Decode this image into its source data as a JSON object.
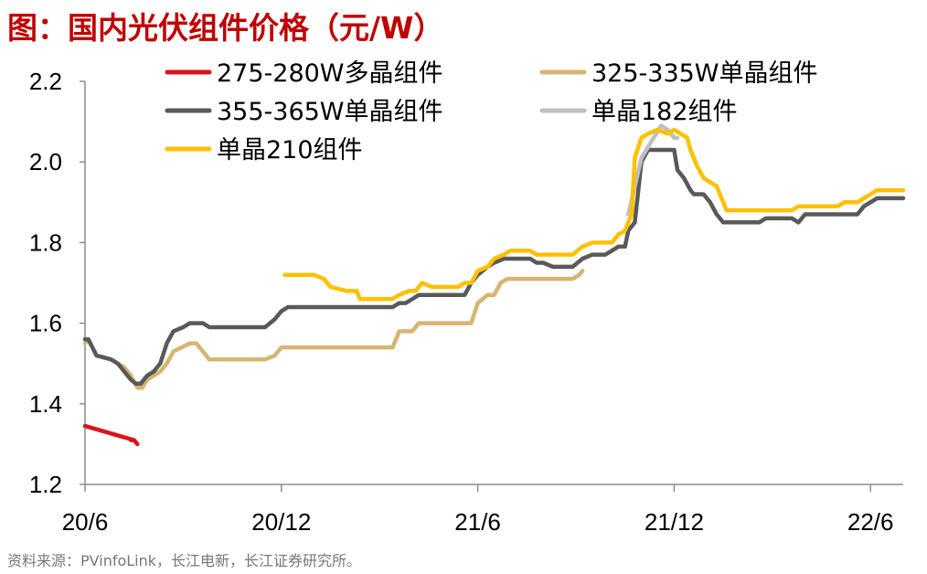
{
  "title": "图：国内光伏组件价格（元/W）",
  "source": "资料来源：PVinfoLink，长江电新，长江证券研究所。",
  "chart_data": {
    "type": "line",
    "title": "图：国内光伏组件价格（元/W）",
    "xlabel": "",
    "ylabel": "",
    "ylim": [
      1.2,
      2.2
    ],
    "yticks": [
      1.2,
      1.4,
      1.6,
      1.8,
      2.0,
      2.2
    ],
    "ytick_labels": [
      "1.2",
      "1.4",
      "1.6",
      "1.8",
      "2.0",
      "2.2"
    ],
    "x_unit": "months since 20/6",
    "xlim": [
      0,
      25
    ],
    "xticks": [
      0,
      6,
      12,
      18,
      24
    ],
    "xtick_labels": [
      "20/6",
      "20/12",
      "21/6",
      "21/12",
      "22/6"
    ],
    "grid": false,
    "legend_position": "top",
    "series": [
      {
        "name": "275-280W多晶组件",
        "color": "#d9141b",
        "points": [
          [
            0,
            1.345
          ],
          [
            1.5,
            1.31
          ],
          [
            1.5,
            1.31
          ],
          [
            1.5,
            1.31
          ],
          [
            1.6,
            1.3
          ],
          [
            1.5,
            1.31
          ],
          [
            1.5,
            1.31
          ],
          [
            1.4,
            1.31
          ],
          [
            1.5,
            1.31
          ],
          [
            1.5,
            1.31
          ],
          [
            1.5,
            1.31
          ],
          [
            1.5,
            1.31
          ],
          [
            1.6,
            1.3
          ],
          [
            1.5,
            1.31
          ],
          [
            1.5,
            1.31
          ],
          [
            1.5,
            1.31
          ],
          [
            1.5,
            1.31
          ],
          [
            1.5,
            1.31
          ],
          [
            1.5,
            1.31
          ],
          [
            1.5,
            1.31
          ],
          [
            1.5,
            1.31
          ],
          [
            1.5,
            1.31
          ],
          [
            1.5,
            1.31
          ],
          [
            1.5,
            1.31
          ],
          [
            1.5,
            1.31
          ],
          [
            1.5,
            1.31
          ],
          [
            1.5,
            1.31
          ],
          [
            1.5,
            1.31
          ],
          [
            1.5,
            1.31
          ],
          [
            1.5,
            1.31
          ],
          [
            1.5,
            1.31
          ],
          [
            1.5,
            1.31
          ],
          [
            1.5,
            1.31
          ],
          [
            1.5,
            1.31
          ],
          [
            1.5,
            1.31
          ],
          [
            1.5,
            1.31
          ],
          [
            1.5,
            1.31
          ],
          [
            1.5,
            1.31
          ],
          [
            1.5,
            1.31
          ],
          [
            1.5,
            1.31
          ],
          [
            1.5,
            1.31
          ],
          [
            1.5,
            1.31
          ],
          [
            1.5,
            1.31
          ],
          [
            1.5,
            1.31
          ],
          [
            1.5,
            1.31
          ],
          [
            1.5,
            1.31
          ]
        ]
      },
      {
        "name": "325-335W单晶组件",
        "color": "#d8b472",
        "points": [
          [
            0,
            1.55
          ],
          [
            0.1,
            1.56
          ],
          [
            0.35,
            1.52
          ],
          [
            0.8,
            1.51
          ],
          [
            1.0,
            1.5
          ],
          [
            1.2,
            1.49
          ],
          [
            1.4,
            1.47
          ],
          [
            1.6,
            1.44
          ],
          [
            1.75,
            1.44
          ],
          [
            1.9,
            1.46
          ],
          [
            2.1,
            1.47
          ],
          [
            2.3,
            1.48
          ],
          [
            2.5,
            1.5
          ],
          [
            2.7,
            1.53
          ],
          [
            3.2,
            1.55
          ],
          [
            3.4,
            1.55
          ],
          [
            3.6,
            1.53
          ],
          [
            3.8,
            1.51
          ],
          [
            4.0,
            1.51
          ],
          [
            4.6,
            1.51
          ],
          [
            5.0,
            1.51
          ],
          [
            5.5,
            1.51
          ],
          [
            5.8,
            1.52
          ],
          [
            6.0,
            1.54
          ],
          [
            6.3,
            1.54
          ],
          [
            8.0,
            1.54
          ],
          [
            9.0,
            1.54
          ],
          [
            9.2,
            1.54
          ],
          [
            9.4,
            1.54
          ],
          [
            9.6,
            1.58
          ],
          [
            9.8,
            1.58
          ],
          [
            10.0,
            1.58
          ],
          [
            10.2,
            1.6
          ],
          [
            10.6,
            1.6
          ],
          [
            11.0,
            1.6
          ],
          [
            11.5,
            1.6
          ],
          [
            11.6,
            1.6
          ],
          [
            11.8,
            1.6
          ],
          [
            12.0,
            1.65
          ],
          [
            12.3,
            1.67
          ],
          [
            12.5,
            1.67
          ],
          [
            12.7,
            1.7
          ],
          [
            12.9,
            1.71
          ],
          [
            13.2,
            1.71
          ],
          [
            14.0,
            1.71
          ],
          [
            14.7,
            1.71
          ],
          [
            14.9,
            1.71
          ],
          [
            15.1,
            1.72
          ],
          [
            15.2,
            1.73
          ]
        ]
      },
      {
        "name": "355-365W单晶组件",
        "color": "#595959",
        "points": [
          [
            0,
            1.56
          ],
          [
            0.1,
            1.56
          ],
          [
            0.35,
            1.52
          ],
          [
            0.8,
            1.51
          ],
          [
            1.0,
            1.5
          ],
          [
            1.2,
            1.48
          ],
          [
            1.4,
            1.46
          ],
          [
            1.55,
            1.45
          ],
          [
            1.7,
            1.45
          ],
          [
            1.9,
            1.47
          ],
          [
            2.1,
            1.48
          ],
          [
            2.3,
            1.5
          ],
          [
            2.5,
            1.55
          ],
          [
            2.7,
            1.58
          ],
          [
            3.0,
            1.59
          ],
          [
            3.2,
            1.6
          ],
          [
            3.6,
            1.6
          ],
          [
            3.8,
            1.59
          ],
          [
            4.0,
            1.59
          ],
          [
            4.6,
            1.59
          ],
          [
            5.0,
            1.59
          ],
          [
            5.5,
            1.59
          ],
          [
            5.8,
            1.61
          ],
          [
            6.0,
            1.63
          ],
          [
            6.2,
            1.64
          ],
          [
            7.0,
            1.64
          ],
          [
            8.0,
            1.64
          ],
          [
            9.0,
            1.64
          ],
          [
            9.2,
            1.64
          ],
          [
            9.4,
            1.64
          ],
          [
            9.6,
            1.65
          ],
          [
            9.8,
            1.65
          ],
          [
            10.0,
            1.66
          ],
          [
            10.2,
            1.67
          ],
          [
            10.6,
            1.67
          ],
          [
            11.0,
            1.67
          ],
          [
            11.5,
            1.67
          ],
          [
            11.6,
            1.67
          ],
          [
            11.8,
            1.7
          ],
          [
            12.0,
            1.72
          ],
          [
            12.3,
            1.74
          ],
          [
            12.5,
            1.75
          ],
          [
            12.8,
            1.76
          ],
          [
            13.3,
            1.76
          ],
          [
            13.6,
            1.76
          ],
          [
            13.8,
            1.75
          ],
          [
            14.0,
            1.75
          ],
          [
            14.3,
            1.74
          ],
          [
            14.7,
            1.74
          ],
          [
            14.9,
            1.74
          ],
          [
            15.2,
            1.76
          ],
          [
            15.5,
            1.77
          ],
          [
            15.9,
            1.77
          ],
          [
            16.1,
            1.78
          ],
          [
            16.3,
            1.79
          ],
          [
            16.5,
            1.79
          ],
          [
            16.6,
            1.83
          ],
          [
            16.8,
            1.85
          ],
          [
            17.0,
            2.0
          ],
          [
            17.2,
            2.03
          ],
          [
            17.5,
            2.03
          ],
          [
            17.8,
            2.03
          ],
          [
            18.0,
            2.03
          ],
          [
            18.1,
            1.98
          ],
          [
            18.3,
            1.96
          ],
          [
            18.5,
            1.93
          ],
          [
            18.6,
            1.92
          ],
          [
            18.9,
            1.92
          ],
          [
            19.1,
            1.9
          ],
          [
            19.3,
            1.87
          ],
          [
            19.5,
            1.85
          ],
          [
            19.8,
            1.85
          ],
          [
            20.4,
            1.85
          ],
          [
            20.6,
            1.85
          ],
          [
            20.8,
            1.86
          ],
          [
            21.3,
            1.86
          ],
          [
            21.6,
            1.86
          ],
          [
            21.8,
            1.85
          ],
          [
            22.0,
            1.87
          ],
          [
            23.0,
            1.87
          ],
          [
            23.6,
            1.87
          ],
          [
            23.8,
            1.89
          ],
          [
            24.0,
            1.9
          ],
          [
            24.2,
            1.91
          ],
          [
            25,
            1.91
          ]
        ]
      },
      {
        "name": "单晶182组件",
        "color": "#bfbfbf",
        "points": [
          [
            16.6,
            1.87
          ],
          [
            17.0,
            2.01
          ],
          [
            17.3,
            2.05
          ],
          [
            17.6,
            2.09
          ],
          [
            17.8,
            2.08
          ],
          [
            18.0,
            2.06
          ],
          [
            18.1,
            2.06
          ]
        ]
      },
      {
        "name": "单晶210组件",
        "color": "#ffc000",
        "points": [
          [
            6.1,
            1.72
          ],
          [
            7.0,
            1.72
          ],
          [
            7.3,
            1.71
          ],
          [
            7.5,
            1.69
          ],
          [
            8.0,
            1.68
          ],
          [
            8.3,
            1.68
          ],
          [
            8.4,
            1.66
          ],
          [
            8.8,
            1.66
          ],
          [
            9.0,
            1.66
          ],
          [
            9.4,
            1.66
          ],
          [
            9.6,
            1.67
          ],
          [
            9.9,
            1.68
          ],
          [
            10.1,
            1.68
          ],
          [
            10.3,
            1.7
          ],
          [
            10.6,
            1.69
          ],
          [
            11.0,
            1.69
          ],
          [
            11.4,
            1.69
          ],
          [
            11.6,
            1.7
          ],
          [
            11.8,
            1.7
          ],
          [
            12.0,
            1.73
          ],
          [
            12.3,
            1.74
          ],
          [
            12.5,
            1.76
          ],
          [
            12.8,
            1.77
          ],
          [
            13.0,
            1.78
          ],
          [
            13.4,
            1.78
          ],
          [
            13.6,
            1.78
          ],
          [
            13.8,
            1.77
          ],
          [
            14.3,
            1.77
          ],
          [
            14.7,
            1.77
          ],
          [
            14.9,
            1.77
          ],
          [
            15.2,
            1.79
          ],
          [
            15.5,
            1.8
          ],
          [
            15.9,
            1.8
          ],
          [
            16.1,
            1.8
          ],
          [
            16.3,
            1.82
          ],
          [
            16.5,
            1.83
          ],
          [
            16.7,
            1.87
          ],
          [
            16.8,
            2.01
          ],
          [
            17.0,
            2.06
          ],
          [
            17.2,
            2.07
          ],
          [
            17.5,
            2.08
          ],
          [
            17.8,
            2.07
          ],
          [
            18.0,
            2.08
          ],
          [
            18.2,
            2.07
          ],
          [
            18.4,
            2.06
          ],
          [
            18.5,
            2.03
          ],
          [
            18.7,
            1.99
          ],
          [
            18.9,
            1.96
          ],
          [
            19.1,
            1.95
          ],
          [
            19.3,
            1.94
          ],
          [
            19.4,
            1.92
          ],
          [
            19.6,
            1.88
          ],
          [
            19.8,
            1.88
          ],
          [
            20.4,
            1.88
          ],
          [
            21.0,
            1.88
          ],
          [
            21.6,
            1.88
          ],
          [
            21.8,
            1.89
          ],
          [
            22.0,
            1.89
          ],
          [
            22.6,
            1.89
          ],
          [
            23.0,
            1.89
          ],
          [
            23.2,
            1.9
          ],
          [
            23.6,
            1.9
          ],
          [
            23.8,
            1.91
          ],
          [
            24.0,
            1.92
          ],
          [
            24.2,
            1.93
          ],
          [
            25,
            1.93
          ]
        ]
      }
    ]
  }
}
